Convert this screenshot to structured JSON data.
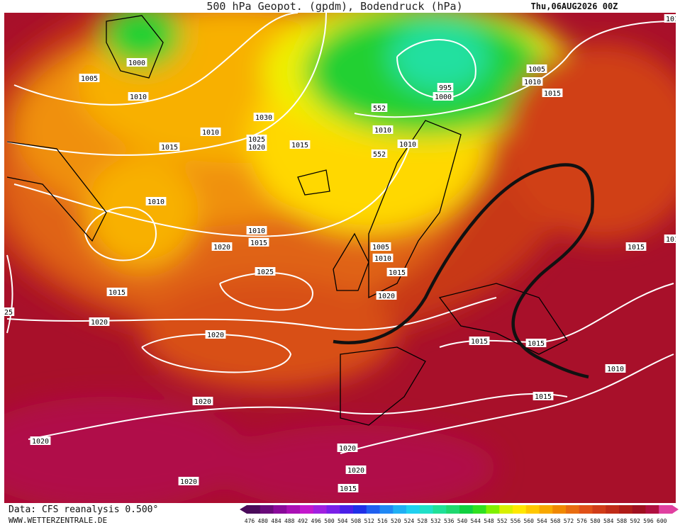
{
  "header": {
    "title": "500 hPa Geopot. (gpdm), Bodendruck (hPa)",
    "date": "Thu,06AUG2026 00Z"
  },
  "map": {
    "isobar_labels": [
      "1000",
      "1005",
      "1010",
      "1030",
      "1010",
      "1025",
      "1020",
      "1015",
      "1015",
      "552",
      "1010",
      "1010",
      "552",
      "995",
      "1000",
      "1005",
      "1010",
      "1015",
      "1010",
      "1010",
      "1015",
      "1020",
      "1005",
      "1010",
      "1015",
      "1025",
      "1015",
      "1020",
      "1020",
      "1020",
      "1015",
      "1015",
      "1010",
      "1020",
      "1015",
      "1020",
      "1020",
      "1020",
      "1015",
      "1020",
      "1015",
      "101",
      "101",
      "25"
    ]
  },
  "colorbar": {
    "labels": [
      476,
      480,
      484,
      488,
      492,
      496,
      500,
      504,
      508,
      512,
      516,
      520,
      524,
      528,
      532,
      536,
      540,
      544,
      548,
      552,
      556,
      560,
      564,
      568,
      572,
      576,
      580,
      584,
      588,
      592,
      596,
      600
    ],
    "colors": [
      "#4a0a5a",
      "#6a0a7a",
      "#8a0a9a",
      "#aa10b4",
      "#c418cc",
      "#a020e0",
      "#7a20e8",
      "#4a20e8",
      "#2030e8",
      "#2060f0",
      "#2088f4",
      "#20b0f4",
      "#20d0f0",
      "#20e0c8",
      "#20e098",
      "#20d870",
      "#10d040",
      "#30e020",
      "#80f000",
      "#d8f000",
      "#ffe800",
      "#ffc800",
      "#f8a800",
      "#f08800",
      "#e86c10",
      "#e05018",
      "#d03c18",
      "#c02c18",
      "#b01c18",
      "#a01020",
      "#b01040",
      "#e040a0"
    ]
  },
  "footer": {
    "source": "Data: CFS reanalysis 0.500°",
    "site": "WWW.WETTERZENTRALE.DE"
  }
}
